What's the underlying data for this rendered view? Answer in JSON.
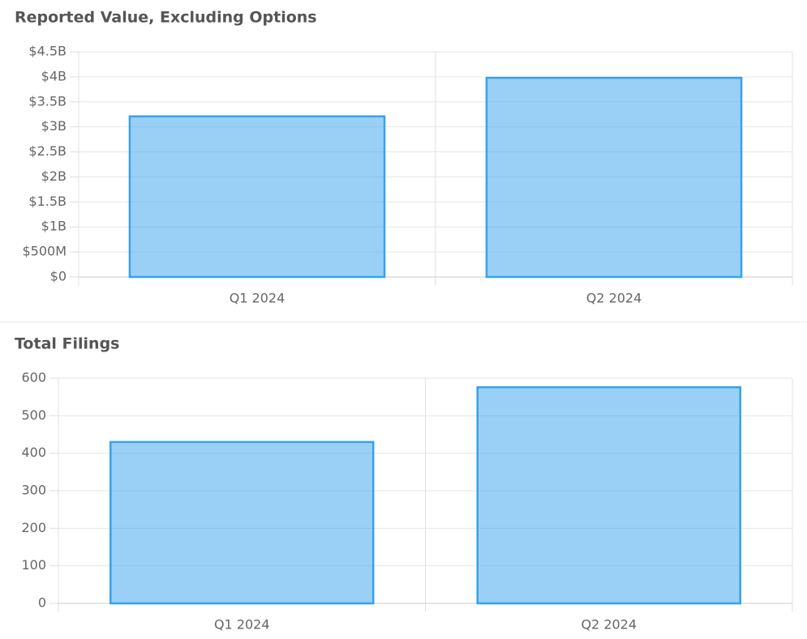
{
  "chart_data": [
    {
      "type": "bar",
      "title": "Reported Value, Excluding Options",
      "categories": [
        "Q1 2024",
        "Q2 2024"
      ],
      "values": [
        3210000000,
        3980000000
      ],
      "color": "#36a2eb",
      "ylim": [
        0,
        4500000000
      ],
      "yticks": [
        {
          "value": 0,
          "label": "$0"
        },
        {
          "value": 500000000,
          "label": "$500M"
        },
        {
          "value": 1000000000,
          "label": "$1B"
        },
        {
          "value": 1500000000,
          "label": "$1.5B"
        },
        {
          "value": 2000000000,
          "label": "$2B"
        },
        {
          "value": 2500000000,
          "label": "$2.5B"
        },
        {
          "value": 3000000000,
          "label": "$3B"
        },
        {
          "value": 3500000000,
          "label": "$3.5B"
        },
        {
          "value": 4000000000,
          "label": "$4B"
        },
        {
          "value": 4500000000,
          "label": "$4.5B"
        }
      ],
      "grid": true
    },
    {
      "type": "bar",
      "title": "Total Filings",
      "categories": [
        "Q1 2024",
        "Q2 2024"
      ],
      "values": [
        430,
        576
      ],
      "color": "#36a2eb",
      "ylim": [
        0,
        600
      ],
      "yticks": [
        0,
        100,
        200,
        300,
        400,
        500,
        600
      ],
      "grid": true
    }
  ]
}
